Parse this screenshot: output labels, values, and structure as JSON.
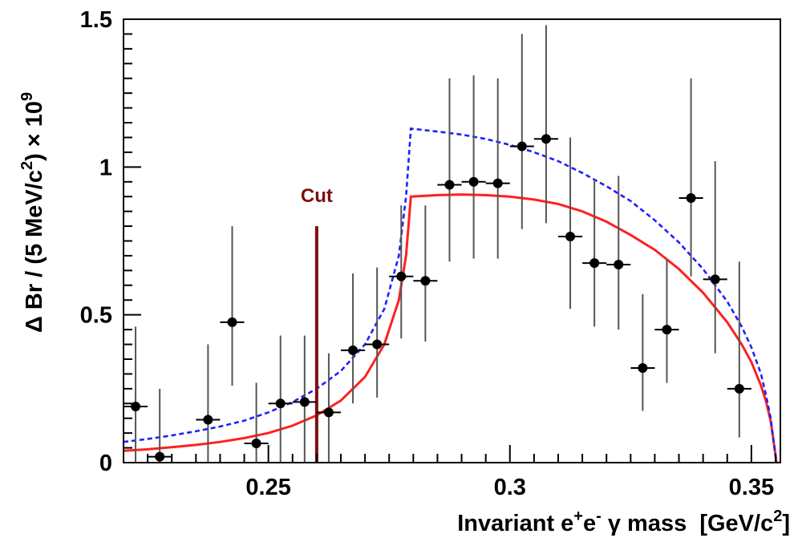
{
  "chart_data": {
    "type": "scatter",
    "xlabel_parts": [
      "Invariant e",
      "+",
      "e",
      "-",
      " γ mass  [GeV/c",
      "2",
      "]"
    ],
    "ylabel_parts": [
      "Δ Br / (5 MeV/c",
      "2",
      ") × 10",
      "9"
    ],
    "xlim": [
      0.22,
      0.356
    ],
    "ylim": [
      0,
      1.5
    ],
    "x_tick_labels": [
      "0.25",
      "0.3",
      "0.35"
    ],
    "y_tick_labels": [
      "0",
      "0.5",
      "1",
      "1.5"
    ],
    "grid": false,
    "legend": "none",
    "annotations": [
      {
        "text": "Cut",
        "x": 0.26,
        "y_top": 0.8,
        "color": "#7a1010"
      }
    ],
    "points": [
      {
        "x": 0.2225,
        "y": 0.19,
        "ylo": 0.0,
        "yhi": 0.46
      },
      {
        "x": 0.2275,
        "y": 0.02,
        "ylo": 0.0,
        "yhi": 0.25
      },
      {
        "x": 0.2375,
        "y": 0.145,
        "ylo": 0.0,
        "yhi": 0.4
      },
      {
        "x": 0.2425,
        "y": 0.475,
        "ylo": 0.26,
        "yhi": 0.8
      },
      {
        "x": 0.2475,
        "y": 0.065,
        "ylo": 0.0,
        "yhi": 0.27
      },
      {
        "x": 0.2525,
        "y": 0.2,
        "ylo": 0.0,
        "yhi": 0.43
      },
      {
        "x": 0.2575,
        "y": 0.205,
        "ylo": 0.0,
        "yhi": 0.43
      },
      {
        "x": 0.2625,
        "y": 0.17,
        "ylo": 0.0,
        "yhi": 0.37
      },
      {
        "x": 0.2675,
        "y": 0.38,
        "ylo": 0.2,
        "yhi": 0.64
      },
      {
        "x": 0.2725,
        "y": 0.4,
        "ylo": 0.22,
        "yhi": 0.66
      },
      {
        "x": 0.2775,
        "y": 0.63,
        "ylo": 0.42,
        "yhi": 0.87
      },
      {
        "x": 0.2825,
        "y": 0.615,
        "ylo": 0.41,
        "yhi": 0.87
      },
      {
        "x": 0.2875,
        "y": 0.94,
        "ylo": 0.68,
        "yhi": 1.3
      },
      {
        "x": 0.2925,
        "y": 0.95,
        "ylo": 0.69,
        "yhi": 1.31
      },
      {
        "x": 0.2975,
        "y": 0.945,
        "ylo": 0.69,
        "yhi": 1.3
      },
      {
        "x": 0.3025,
        "y": 1.07,
        "ylo": 0.79,
        "yhi": 1.45
      },
      {
        "x": 0.3075,
        "y": 1.095,
        "ylo": 0.81,
        "yhi": 1.48
      },
      {
        "x": 0.3125,
        "y": 0.765,
        "ylo": 0.52,
        "yhi": 1.1
      },
      {
        "x": 0.3175,
        "y": 0.675,
        "ylo": 0.46,
        "yhi": 0.96
      },
      {
        "x": 0.3225,
        "y": 0.67,
        "ylo": 0.45,
        "yhi": 0.97
      },
      {
        "x": 0.3275,
        "y": 0.32,
        "ylo": 0.175,
        "yhi": 0.57
      },
      {
        "x": 0.3325,
        "y": 0.45,
        "ylo": 0.27,
        "yhi": 0.69
      },
      {
        "x": 0.3375,
        "y": 0.895,
        "ylo": 0.63,
        "yhi": 1.3
      },
      {
        "x": 0.3425,
        "y": 0.62,
        "ylo": 0.37,
        "yhi": 1.02
      },
      {
        "x": 0.3475,
        "y": 0.25,
        "ylo": 0.085,
        "yhi": 0.68
      }
    ],
    "series": [
      {
        "style": "solid",
        "color": "#ff2020",
        "points": [
          [
            0.22,
            0.04
          ],
          [
            0.225,
            0.045
          ],
          [
            0.23,
            0.052
          ],
          [
            0.235,
            0.06
          ],
          [
            0.24,
            0.07
          ],
          [
            0.245,
            0.083
          ],
          [
            0.25,
            0.1
          ],
          [
            0.255,
            0.125
          ],
          [
            0.26,
            0.16
          ],
          [
            0.265,
            0.21
          ],
          [
            0.27,
            0.29
          ],
          [
            0.274,
            0.4
          ],
          [
            0.277,
            0.55
          ],
          [
            0.2785,
            0.7
          ],
          [
            0.2795,
            0.9
          ],
          [
            0.285,
            0.905
          ],
          [
            0.29,
            0.907
          ],
          [
            0.295,
            0.905
          ],
          [
            0.3,
            0.9
          ],
          [
            0.305,
            0.89
          ],
          [
            0.31,
            0.875
          ],
          [
            0.315,
            0.85
          ],
          [
            0.32,
            0.815
          ],
          [
            0.325,
            0.77
          ],
          [
            0.33,
            0.72
          ],
          [
            0.335,
            0.655
          ],
          [
            0.34,
            0.575
          ],
          [
            0.345,
            0.475
          ],
          [
            0.348,
            0.4
          ],
          [
            0.35,
            0.34
          ],
          [
            0.352,
            0.26
          ],
          [
            0.353,
            0.21
          ],
          [
            0.354,
            0.14
          ],
          [
            0.3547,
            0.06
          ],
          [
            0.3552,
            0.0
          ]
        ]
      },
      {
        "style": "dashed",
        "color": "#2020ff",
        "points": [
          [
            0.22,
            0.07
          ],
          [
            0.225,
            0.08
          ],
          [
            0.23,
            0.092
          ],
          [
            0.235,
            0.106
          ],
          [
            0.24,
            0.122
          ],
          [
            0.245,
            0.142
          ],
          [
            0.25,
            0.17
          ],
          [
            0.255,
            0.205
          ],
          [
            0.26,
            0.25
          ],
          [
            0.265,
            0.31
          ],
          [
            0.27,
            0.4
          ],
          [
            0.274,
            0.52
          ],
          [
            0.277,
            0.7
          ],
          [
            0.2785,
            0.9
          ],
          [
            0.2795,
            1.13
          ],
          [
            0.285,
            1.12
          ],
          [
            0.29,
            1.11
          ],
          [
            0.295,
            1.095
          ],
          [
            0.3,
            1.075
          ],
          [
            0.305,
            1.05
          ],
          [
            0.31,
            1.02
          ],
          [
            0.315,
            0.98
          ],
          [
            0.32,
            0.935
          ],
          [
            0.325,
            0.885
          ],
          [
            0.33,
            0.82
          ],
          [
            0.335,
            0.745
          ],
          [
            0.34,
            0.655
          ],
          [
            0.345,
            0.545
          ],
          [
            0.348,
            0.46
          ],
          [
            0.35,
            0.39
          ],
          [
            0.352,
            0.3
          ],
          [
            0.353,
            0.23
          ],
          [
            0.354,
            0.15
          ],
          [
            0.3547,
            0.06
          ],
          [
            0.3552,
            0.0
          ]
        ]
      }
    ]
  }
}
